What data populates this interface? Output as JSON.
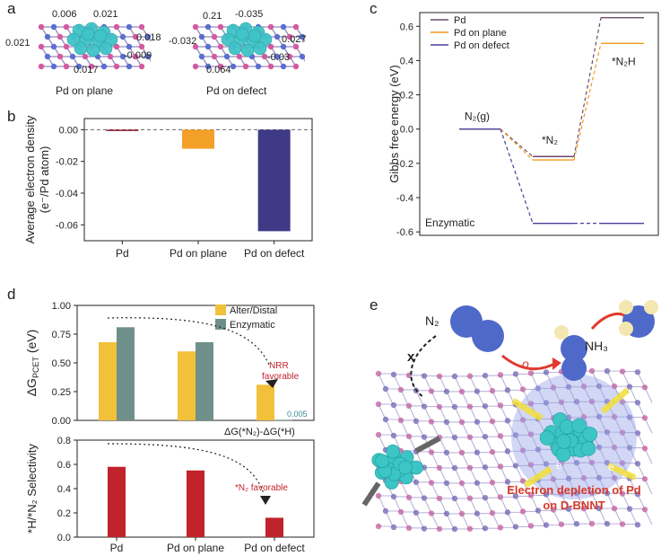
{
  "panel_labels": {
    "a": "a",
    "b": "b",
    "c": "c",
    "d": "d",
    "e": "e"
  },
  "panel_a": {
    "plane": {
      "caption": "Pd on plane",
      "charges": [
        "0.006",
        "0.021",
        "0.021",
        "0.018",
        "-0.009",
        "0.017"
      ]
    },
    "defect": {
      "caption": "Pd on defect",
      "charges": [
        "0.21",
        "-0.035",
        "-0.032",
        "0.027",
        "-0.03",
        "0.064"
      ]
    },
    "colors": {
      "pd": "#3fc4c8",
      "b": "#d45aa0",
      "n": "#5a6fd0"
    }
  },
  "panel_e": {
    "n2_label": "N₂",
    "nh3_label": "NH₃",
    "x_label": "x",
    "e_label": "e",
    "depletion_text": [
      "Electron depletion of Pd",
      "on D-BNNT"
    ],
    "colors": {
      "pd": "#3cc5c5",
      "n": "#4f69c9",
      "h": "#f4e6b0",
      "arrow": "#e03a2f",
      "yellow": "#f2e03a",
      "text": "#d63a2a"
    }
  },
  "chart_data": [
    {
      "id": "b",
      "type": "bar",
      "categories": [
        "Pd",
        "Pd on plane",
        "Pd on defect"
      ],
      "values": [
        -0.0005,
        -0.012,
        -0.064
      ],
      "ylabel": [
        "Average electron density",
        "(e⁻/Pd atom)"
      ],
      "yticks": [
        "0.00",
        "-0.02",
        "-0.04",
        "-0.06"
      ],
      "ylim": [
        -0.07,
        0.007
      ],
      "colors": [
        "#8b1f2c",
        "#f3a028",
        "#3f3a86"
      ]
    },
    {
      "id": "c",
      "type": "line",
      "ylabel": "Gibbs free energy (eV)",
      "yticks": [
        "0.6",
        "0.4",
        "0.2",
        "0.0",
        "-0.2",
        "-0.4",
        "-0.6"
      ],
      "ylim": [
        -0.62,
        0.68
      ],
      "series": [
        {
          "name": "Pd",
          "color": "#6a4a6a",
          "levels": [
            0.0,
            -0.16,
            0.65
          ]
        },
        {
          "name": "Pd on plane",
          "color": "#f29a1c",
          "levels": [
            0.0,
            -0.18,
            0.5
          ]
        },
        {
          "name": "Pd on defect",
          "color": "#4a3f9a",
          "levels": [
            0.0,
            -0.55,
            -0.55
          ]
        }
      ],
      "annotations": [
        "N₂(g)",
        "*N₂",
        "*N₂H",
        "Enzymatic"
      ]
    },
    {
      "id": "d-top",
      "type": "bar",
      "categories": [
        "Pd",
        "Pd on plane",
        "Pd on defect"
      ],
      "series": [
        {
          "name": "Alter/Distal",
          "values": [
            0.68,
            0.6,
            0.31
          ],
          "color": "#f2c13a"
        },
        {
          "name": "Enzymatic",
          "values": [
            0.81,
            0.68,
            0.005
          ],
          "color": "#6f8f8a"
        }
      ],
      "ylabel": "ΔG",
      "ylabel_sub": "PCET",
      "ylabel_unit": " (eV)",
      "yticks": [
        "1.00",
        "0.75",
        "0.50",
        "0.25",
        "0.00"
      ],
      "ylim": [
        0,
        1.0
      ],
      "annotations": [
        "NRR",
        "favorable",
        "0.005"
      ]
    },
    {
      "id": "d-bottom",
      "type": "bar",
      "categories": [
        "Pd",
        "Pd on plane",
        "Pd on defect"
      ],
      "values": [
        0.58,
        0.55,
        0.16
      ],
      "ylabel": "*H/*N₂ Selectivity",
      "yticks": [
        "0.8",
        "0.6",
        "0.4",
        "0.2",
        "0.0"
      ],
      "ylim": [
        0,
        0.8
      ],
      "color": "#c0232c",
      "annotations": [
        "ΔG(*N₂)-ΔG(*H)",
        "*N₂ favorable"
      ]
    }
  ]
}
